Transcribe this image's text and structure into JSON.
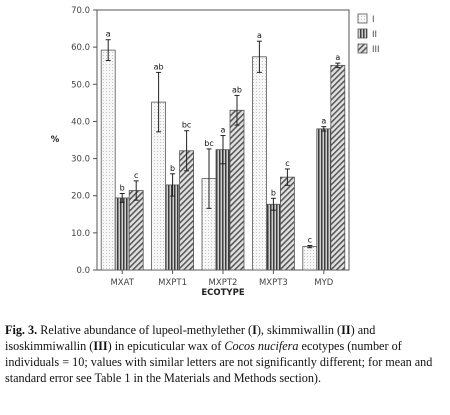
{
  "chart_data": {
    "type": "bar",
    "xlabel": "ECOTYPE",
    "ylabel": "%",
    "ylim": [
      0,
      70
    ],
    "y_ticks": [
      "0.0",
      "10.0",
      "20.0",
      "30.0",
      "40.0",
      "50.0",
      "60.0",
      "70.0"
    ],
    "categories": [
      "MXAT",
      "MXPT1",
      "MXPT2",
      "MXPT3",
      "MYD"
    ],
    "series": [
      {
        "name": "I",
        "values": [
          59.2,
          45.2,
          24.6,
          57.4,
          6.3
        ],
        "errors": [
          2.8,
          8.0,
          8.0,
          4.2,
          0.3
        ],
        "letters": [
          "a",
          "ab",
          "bc",
          "a",
          "c"
        ]
      },
      {
        "name": "II",
        "values": [
          19.4,
          22.9,
          32.4,
          17.7,
          38.0
        ],
        "errors": [
          1.2,
          3.0,
          3.8,
          1.6,
          0.6
        ],
        "letters": [
          "b",
          "b",
          "a",
          "b",
          "a"
        ]
      },
      {
        "name": "III",
        "values": [
          21.4,
          32.1,
          43.0,
          25.0,
          55.1
        ],
        "errors": [
          2.6,
          5.4,
          4.0,
          2.2,
          0.6
        ],
        "letters": [
          "c",
          "bc",
          "ab",
          "c",
          "a"
        ]
      }
    ],
    "legend_position": "top-right",
    "fills": {
      "I": "#f4f4f4",
      "II": "#6e6e6e",
      "III": "#bdbdbd"
    }
  },
  "caption": {
    "fig_label": "Fig. 3.",
    "t1": " Relative abundance of lupeol-methylether (",
    "b1": "I",
    "t2": "), skimmiwallin (",
    "b2": "II",
    "t3": ") and isoskimmiwallin (",
    "b3": "III",
    "t4": ") in epicuticular wax of ",
    "species": "Cocos nucifera",
    "t5": " ecotypes (number of individuals = 10; values with similar letters are not significantly different; for mean and standard error see Table 1 in the Materials and Methods section)."
  }
}
